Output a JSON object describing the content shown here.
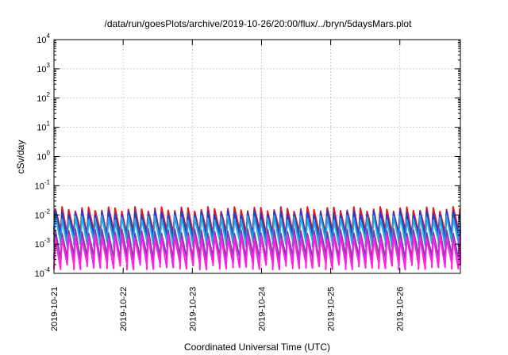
{
  "chart_data": {
    "type": "line",
    "title": "/data/run/goesPlots/archive/2019-10-26/20:00/flux/../bryn/5daysMars.plot",
    "xlabel": "Coordinated Universal Time (UTC)",
    "ylabel": "cSv/day",
    "y_scale": "log",
    "ylim": [
      0.0001,
      10000
    ],
    "xlim": [
      "2019-10-21",
      "2019-10-26T21:00"
    ],
    "grid": true,
    "y_ticks": [
      {
        "base": "10",
        "exp": "-4"
      },
      {
        "base": "10",
        "exp": "-3"
      },
      {
        "base": "10",
        "exp": "-2"
      },
      {
        "base": "10",
        "exp": "-1"
      },
      {
        "base": "10",
        "exp": "0"
      },
      {
        "base": "10",
        "exp": "1"
      },
      {
        "base": "10",
        "exp": "2"
      },
      {
        "base": "10",
        "exp": "3"
      },
      {
        "base": "10",
        "exp": "4"
      }
    ],
    "x_ticks": [
      "2019-10-21",
      "2019-10-22",
      "2019-10-23",
      "2019-10-24",
      "2019-10-25",
      "2019-10-26"
    ],
    "sawtooth_period_hours": 2.3,
    "series": [
      {
        "color": "#e31a1c",
        "peak": 0.016,
        "trough": 0.0025
      },
      {
        "color": "#1f3fd0",
        "peak": 0.012,
        "trough": 0.0018
      },
      {
        "color": "#2aa6e0",
        "peak": 0.008,
        "trough": 0.0011
      },
      {
        "color": "#7a3fb0",
        "peak": 0.0028,
        "trough": 0.00035
      },
      {
        "color": "#ff1fe0",
        "peak": 0.0018,
        "trough": 0.00018
      }
    ]
  }
}
